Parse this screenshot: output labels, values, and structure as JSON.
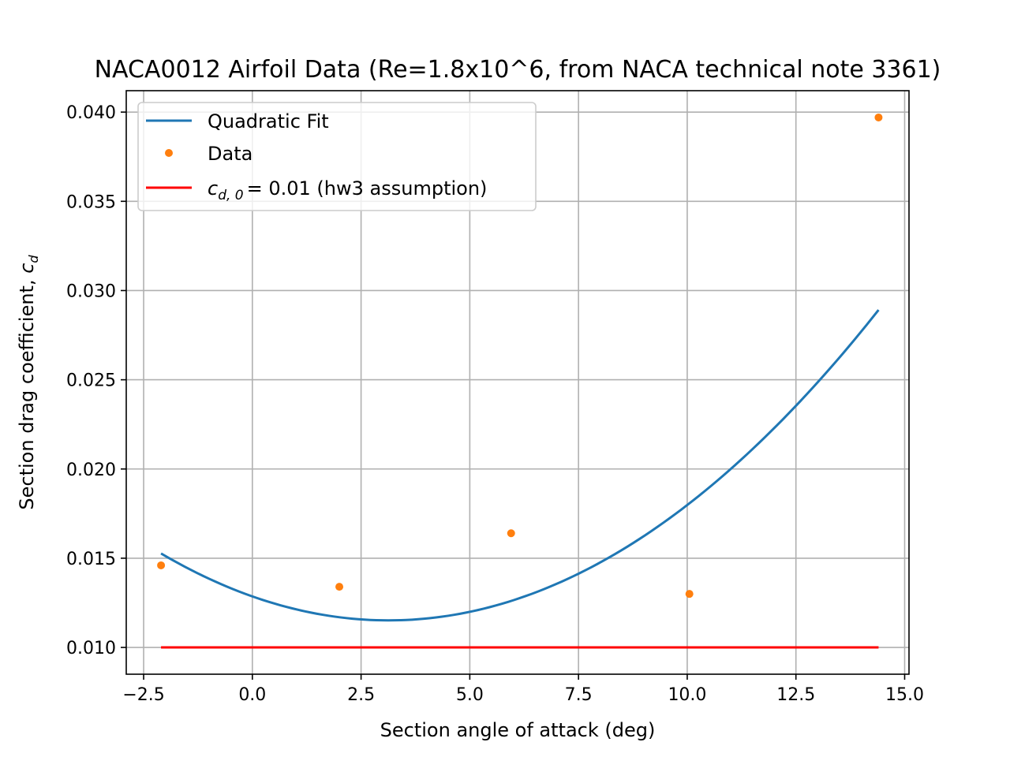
{
  "chart_data": {
    "type": "line",
    "title": "NACA0012 Airfoil Data (Re=1.8x10^6, from NACA technical note 3361)",
    "xlabel": "Section angle of attack (deg)",
    "ylabel": "Section drag coefficient, c_d",
    "ylabel_prefix": "Section drag coefficient, ",
    "ylabel_symbol": "c",
    "ylabel_subscript": "d",
    "xlim": [
      -2.9,
      15.1
    ],
    "ylim": [
      0.0085,
      0.0412
    ],
    "x_ticks": [
      -2.5,
      0.0,
      2.5,
      5.0,
      7.5,
      10.0,
      12.5,
      15.0
    ],
    "x_tick_labels": [
      "−2.5",
      "0.0",
      "2.5",
      "5.0",
      "7.5",
      "10.0",
      "12.5",
      "15.0"
    ],
    "y_ticks": [
      0.01,
      0.015,
      0.02,
      0.025,
      0.03,
      0.035,
      0.04
    ],
    "y_tick_labels": [
      "0.010",
      "0.015",
      "0.020",
      "0.025",
      "0.030",
      "0.035",
      "0.040"
    ],
    "grid": true,
    "legend_position": "upper-left",
    "series": [
      {
        "name": "Quadratic Fit",
        "kind": "line",
        "color": "#1f77b4",
        "fit": {
          "a": 0.000137,
          "b": -0.000858,
          "c": 0.01286
        },
        "x_range": [
          -2.1,
          14.4
        ]
      },
      {
        "name": "Data",
        "kind": "scatter",
        "color": "#ff7f0e",
        "x": [
          -2.1,
          2.0,
          5.95,
          10.05,
          14.4
        ],
        "y": [
          0.0146,
          0.0134,
          0.0164,
          0.013,
          0.0397
        ]
      },
      {
        "name": "c_{d,0} = 0.01 (hw3 assumption)",
        "kind": "line",
        "color": "#ff0000",
        "x": [
          -2.1,
          14.4
        ],
        "y": [
          0.01,
          0.01
        ]
      }
    ],
    "legend": [
      {
        "label": "Quadratic Fit",
        "marker": "line",
        "color": "#1f77b4"
      },
      {
        "label": "Data",
        "marker": "dot",
        "color": "#ff7f0e"
      },
      {
        "label": "= 0.01 (hw3 assumption)",
        "symbol": "c",
        "subscript": "d, 0",
        "marker": "line",
        "color": "#ff0000"
      }
    ]
  }
}
